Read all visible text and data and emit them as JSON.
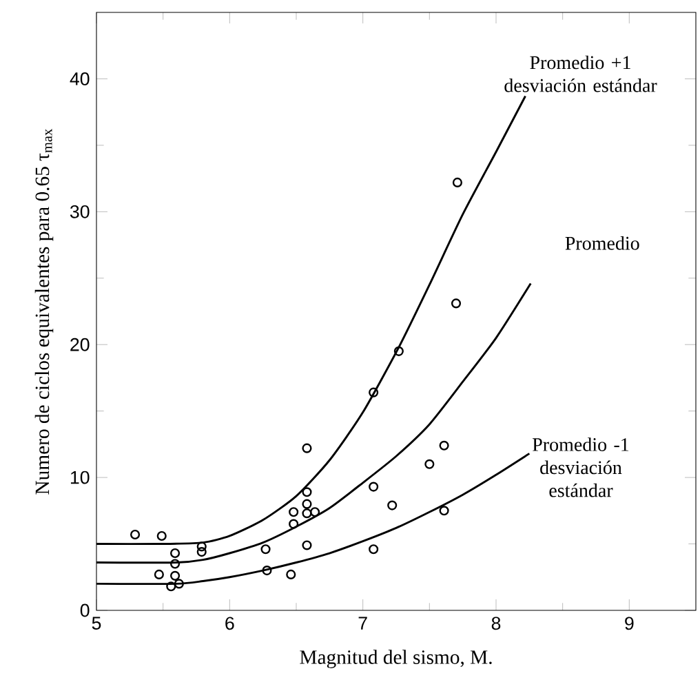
{
  "chart_data": {
    "type": "line",
    "xlabel": "Magnitud del sismo, M.",
    "ylabel": "Numero de ciclos equivalentes para 0.65 τ$_{max}$",
    "xlim": [
      5,
      9.5
    ],
    "ylim": [
      0,
      45
    ],
    "xticks": [
      5,
      6,
      7,
      8,
      9
    ],
    "yticks": [
      0,
      10,
      20,
      30,
      40
    ],
    "grid": false,
    "line_style": "solid",
    "series": [
      {
        "name": "Promedio +1 desviación estándar",
        "color": "#000000",
        "x": [
          5,
          5.5,
          5.8,
          6.0,
          6.25,
          6.5,
          6.75,
          7.0,
          7.27,
          7.5,
          7.75,
          8.0,
          8.22
        ],
        "values": [
          5.0,
          5.0,
          5.1,
          5.6,
          6.8,
          8.6,
          11.3,
          14.9,
          19.8,
          24.5,
          29.8,
          34.5,
          38.7
        ]
      },
      {
        "name": "Promedio",
        "color": "#000000",
        "x": [
          5,
          5.6,
          5.8,
          6.0,
          6.25,
          6.5,
          6.75,
          7.0,
          7.25,
          7.5,
          7.75,
          8.0,
          8.26
        ],
        "values": [
          3.6,
          3.6,
          3.8,
          4.3,
          5.1,
          6.3,
          7.7,
          9.6,
          11.6,
          14.0,
          17.2,
          20.5,
          24.6
        ]
      },
      {
        "name": "Promedio -1 desviación estándar",
        "color": "#000000",
        "x": [
          5,
          5.6,
          5.8,
          6.0,
          6.25,
          6.5,
          6.75,
          7.0,
          7.25,
          7.5,
          7.75,
          8.0,
          8.25
        ],
        "values": [
          2.0,
          2.0,
          2.2,
          2.5,
          3.0,
          3.6,
          4.3,
          5.2,
          6.2,
          7.4,
          8.7,
          10.2,
          11.8
        ]
      },
      {
        "type": "scatter",
        "marker": "circle",
        "color": "#000000",
        "x": [
          5.29,
          5.49,
          5.59,
          5.59,
          5.47,
          5.59,
          5.56,
          5.62,
          5.79,
          5.79,
          6.27,
          6.28,
          6.46,
          6.48,
          6.48,
          6.58,
          6.58,
          6.58,
          6.58,
          6.64,
          6.58,
          7.08,
          7.08,
          7.22,
          7.71,
          7.7,
          7.27,
          7.08,
          7.61,
          7.5,
          7.61
        ],
        "values": [
          5.7,
          5.6,
          4.3,
          3.5,
          2.7,
          2.6,
          1.8,
          2.0,
          4.8,
          4.4,
          4.6,
          3.0,
          2.7,
          7.4,
          6.5,
          12.2,
          8.9,
          8.0,
          7.3,
          7.4,
          4.9,
          9.3,
          4.6,
          7.9,
          32.2,
          23.1,
          19.5,
          16.4,
          12.4,
          11.0,
          7.5
        ]
      }
    ]
  }
}
